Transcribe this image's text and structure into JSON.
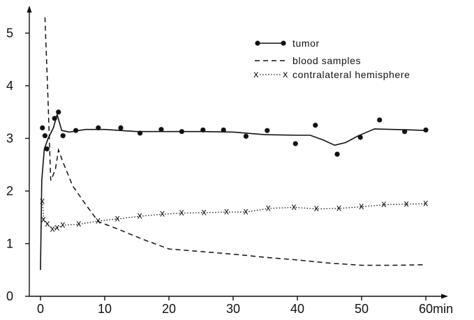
{
  "chart_data": {
    "type": "line",
    "x_unit_label": "min",
    "xlim": [
      0,
      60
    ],
    "ylim": [
      0,
      5.3
    ],
    "x_ticks": [
      0,
      10,
      20,
      30,
      40,
      50,
      60
    ],
    "y_ticks": [
      0,
      1,
      2,
      3,
      4,
      5
    ],
    "grid": false,
    "legend_position": "top-right",
    "series": [
      {
        "name": "tumor",
        "style": "solid-with-points",
        "points": [
          [
            0.3,
            3.2
          ],
          [
            0.7,
            3.05
          ],
          [
            1.0,
            2.8
          ],
          [
            2.2,
            3.38
          ],
          [
            2.8,
            3.5
          ],
          [
            3.5,
            3.05
          ],
          [
            5.5,
            3.15
          ],
          [
            9.0,
            3.2
          ],
          [
            12.5,
            3.2
          ],
          [
            15.5,
            3.1
          ],
          [
            18.8,
            3.17
          ],
          [
            22.0,
            3.13
          ],
          [
            25.3,
            3.16
          ],
          [
            28.5,
            3.16
          ],
          [
            32.0,
            3.04
          ],
          [
            35.3,
            3.15
          ],
          [
            39.7,
            2.9
          ],
          [
            42.8,
            3.25
          ],
          [
            46.2,
            2.7
          ],
          [
            49.8,
            3.02
          ],
          [
            52.8,
            3.35
          ],
          [
            56.7,
            3.13
          ],
          [
            60.0,
            3.16
          ]
        ],
        "curve": [
          [
            0.0,
            0.5
          ],
          [
            0.2,
            2.2
          ],
          [
            0.6,
            2.8
          ],
          [
            1.2,
            3.0
          ],
          [
            2.0,
            3.2
          ],
          [
            2.6,
            3.45
          ],
          [
            3.3,
            3.15
          ],
          [
            4.5,
            3.12
          ],
          [
            7.0,
            3.17
          ],
          [
            10.0,
            3.17
          ],
          [
            15.0,
            3.13
          ],
          [
            20.0,
            3.13
          ],
          [
            25.0,
            3.13
          ],
          [
            30.0,
            3.12
          ],
          [
            35.0,
            3.07
          ],
          [
            40.0,
            3.06
          ],
          [
            42.0,
            3.06
          ],
          [
            44.0,
            2.97
          ],
          [
            45.8,
            2.87
          ],
          [
            47.5,
            2.92
          ],
          [
            49.5,
            3.05
          ],
          [
            52.0,
            3.18
          ],
          [
            55.0,
            3.17
          ],
          [
            58.0,
            3.16
          ],
          [
            60.0,
            3.15
          ]
        ]
      },
      {
        "name": "blood samples",
        "style": "dashed",
        "curve": [
          [
            0.7,
            5.3
          ],
          [
            1.1,
            4.0
          ],
          [
            1.6,
            2.2
          ],
          [
            2.3,
            2.4
          ],
          [
            2.8,
            2.78
          ],
          [
            3.5,
            2.55
          ],
          [
            5.0,
            2.1
          ],
          [
            7.0,
            1.75
          ],
          [
            9.0,
            1.42
          ],
          [
            12.0,
            1.28
          ],
          [
            16.0,
            1.08
          ],
          [
            20.0,
            0.9
          ],
          [
            25.0,
            0.85
          ],
          [
            30.0,
            0.8
          ],
          [
            35.0,
            0.74
          ],
          [
            40.0,
            0.69
          ],
          [
            45.0,
            0.63
          ],
          [
            50.0,
            0.59
          ],
          [
            55.0,
            0.59
          ],
          [
            60.0,
            0.6
          ]
        ]
      },
      {
        "name": "contralateral hemisphere",
        "style": "dotted-with-x",
        "points": [
          [
            0.3,
            1.8
          ],
          [
            0.5,
            1.45
          ],
          [
            1.1,
            1.37
          ],
          [
            1.9,
            1.27
          ],
          [
            2.6,
            1.3
          ],
          [
            3.5,
            1.35
          ],
          [
            6.0,
            1.37
          ],
          [
            9.0,
            1.43
          ],
          [
            12.0,
            1.47
          ],
          [
            15.5,
            1.52
          ],
          [
            19.0,
            1.56
          ],
          [
            22.0,
            1.58
          ],
          [
            25.5,
            1.59
          ],
          [
            29.0,
            1.6
          ],
          [
            32.0,
            1.6
          ],
          [
            35.5,
            1.67
          ],
          [
            39.5,
            1.69
          ],
          [
            43.0,
            1.66
          ],
          [
            46.5,
            1.67
          ],
          [
            50.0,
            1.7
          ],
          [
            53.5,
            1.74
          ],
          [
            57.0,
            1.75
          ],
          [
            60.0,
            1.76
          ]
        ]
      }
    ]
  }
}
